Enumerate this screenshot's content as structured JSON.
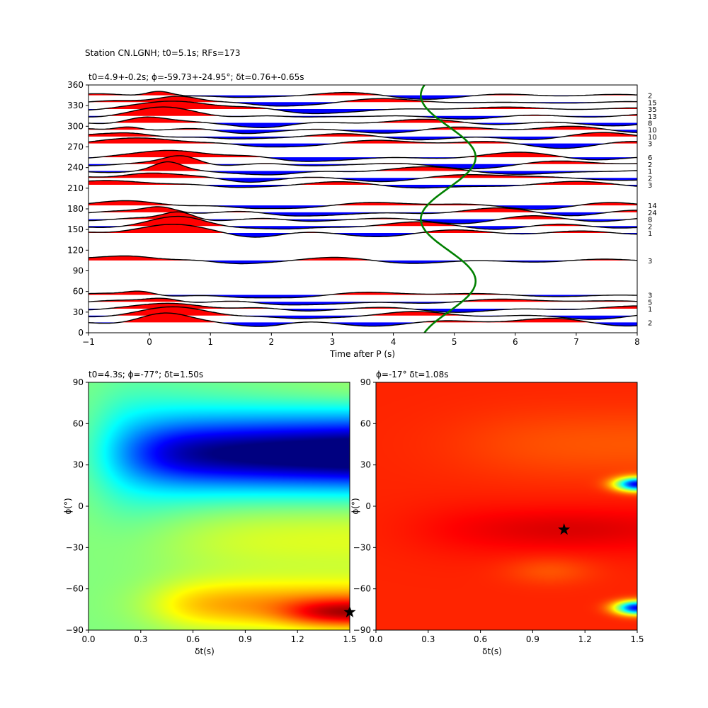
{
  "figure": {
    "suptitle": "Station CN.LGNH; t0=5.1s; RFs=173"
  },
  "chart_data": [
    {
      "type": "line",
      "title": "t0=4.9+-0.2s; ϕ=-59.73+-24.95°; δt=0.76+-0.65s",
      "xlabel": "Time after P (s)",
      "ylabel": "",
      "xlim": [
        -1,
        8
      ],
      "ylim": [
        0,
        360
      ],
      "xticks": [
        "−1",
        "0",
        "1",
        "2",
        "3",
        "4",
        "5",
        "6",
        "7",
        "8"
      ],
      "yticks": [
        "0",
        "30",
        "60",
        "90",
        "120",
        "150",
        "180",
        "210",
        "240",
        "270",
        "300",
        "330",
        "360"
      ],
      "fill_positive": "#ff0000",
      "fill_negative": "#0000ff",
      "trace_color": "#000000",
      "curve_color": "#008000",
      "traces": [
        {
          "baz": 15,
          "count": "2"
        },
        {
          "baz": 25,
          "count": ""
        },
        {
          "baz": 35,
          "count": "1"
        },
        {
          "baz": 45,
          "count": "5"
        },
        {
          "baz": 55,
          "count": "3"
        },
        {
          "baz": 105,
          "count": "3"
        },
        {
          "baz": 145,
          "count": "1"
        },
        {
          "baz": 155,
          "count": "2"
        },
        {
          "baz": 165,
          "count": "8"
        },
        {
          "baz": 175,
          "count": "24"
        },
        {
          "baz": 185,
          "count": "14"
        },
        {
          "baz": 215,
          "count": "3"
        },
        {
          "baz": 225,
          "count": "2"
        },
        {
          "baz": 235,
          "count": "1"
        },
        {
          "baz": 245,
          "count": "2"
        },
        {
          "baz": 255,
          "count": "6"
        },
        {
          "baz": 275,
          "count": "3"
        },
        {
          "baz": 285,
          "count": "10"
        },
        {
          "baz": 295,
          "count": "10"
        },
        {
          "baz": 305,
          "count": "8"
        },
        {
          "baz": 315,
          "count": "13"
        },
        {
          "baz": 325,
          "count": "35"
        },
        {
          "baz": 335,
          "count": "15"
        },
        {
          "baz": 345,
          "count": "2"
        }
      ],
      "t0_curve": {
        "center_s": 4.9,
        "amplitude_s": 0.45
      }
    },
    {
      "type": "heatmap",
      "title": "t0=4.3s; ϕ=-77°; δt=1.50s",
      "xlabel": "δt(s)",
      "ylabel": "ϕ(°)",
      "xlim": [
        0,
        1.5
      ],
      "ylim": [
        -90,
        90
      ],
      "xticks": [
        "0.0",
        "0.3",
        "0.6",
        "0.9",
        "1.2",
        "1.5"
      ],
      "yticks": [
        "−90",
        "−60",
        "−30",
        "0",
        "30",
        "60",
        "90"
      ],
      "colormap": "jet",
      "best": {
        "dt": 1.5,
        "phi": -77
      }
    },
    {
      "type": "heatmap",
      "title": "ϕ=-17° δt=1.08s",
      "xlabel": "δt(s)",
      "ylabel": "ϕ(°)",
      "xlim": [
        0,
        1.5
      ],
      "ylim": [
        -90,
        90
      ],
      "xticks": [
        "0.0",
        "0.3",
        "0.6",
        "0.9",
        "1.2",
        "1.5"
      ],
      "yticks": [
        "−90",
        "−60",
        "−30",
        "0",
        "30",
        "60",
        "90"
      ],
      "colormap": "jet",
      "best": {
        "dt": 1.08,
        "phi": -17
      }
    }
  ]
}
